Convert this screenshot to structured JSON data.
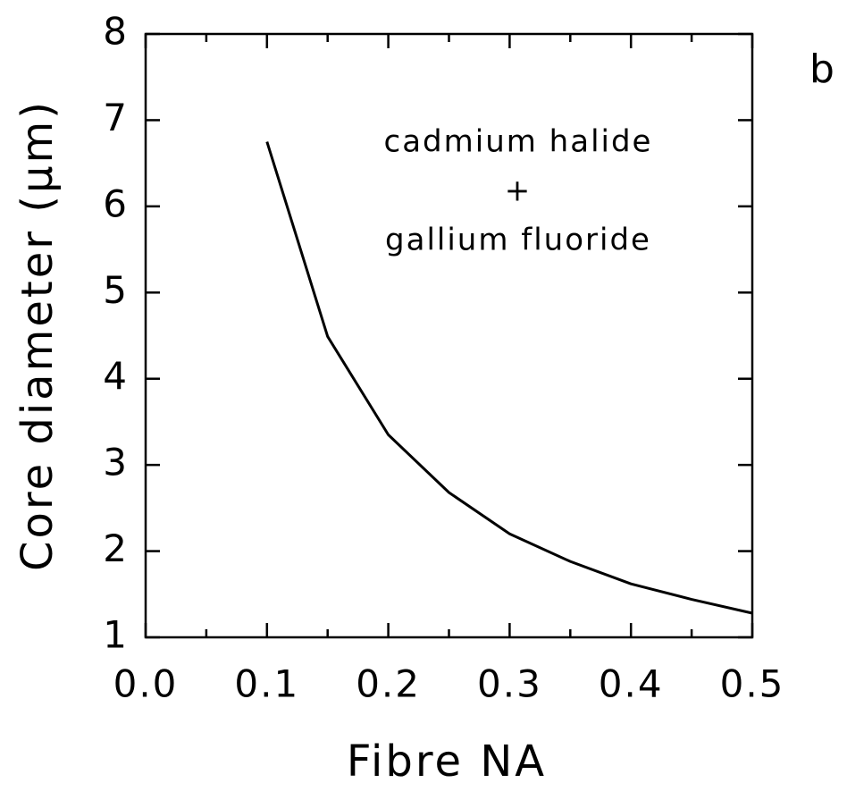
{
  "chart_data": {
    "type": "line",
    "xlabel": "Fibre NA",
    "ylabel": "Core diameter (μm)",
    "panel_label": "b",
    "annotations": [
      "cadmium halide",
      "+",
      "gallium fluoride"
    ],
    "x": [
      0.1,
      0.15,
      0.2,
      0.25,
      0.3,
      0.35,
      0.4,
      0.45,
      0.5
    ],
    "series": [
      {
        "name": null,
        "color": "#000000",
        "values": [
          6.75,
          4.49,
          3.35,
          2.68,
          2.2,
          1.88,
          1.62,
          1.44,
          1.28
        ]
      }
    ],
    "xlim": [
      0,
      0.5
    ],
    "ylim": [
      1,
      8
    ],
    "xticks": [
      {
        "value": 0,
        "label": "0.0"
      },
      0.1,
      0.2,
      0.3,
      0.4,
      0.5
    ],
    "xminorticks": [
      0.05,
      0.15,
      0.25,
      0.35,
      0.45
    ],
    "yticks": [
      1,
      2,
      3,
      4,
      5,
      6,
      7,
      8
    ],
    "grid": false
  }
}
